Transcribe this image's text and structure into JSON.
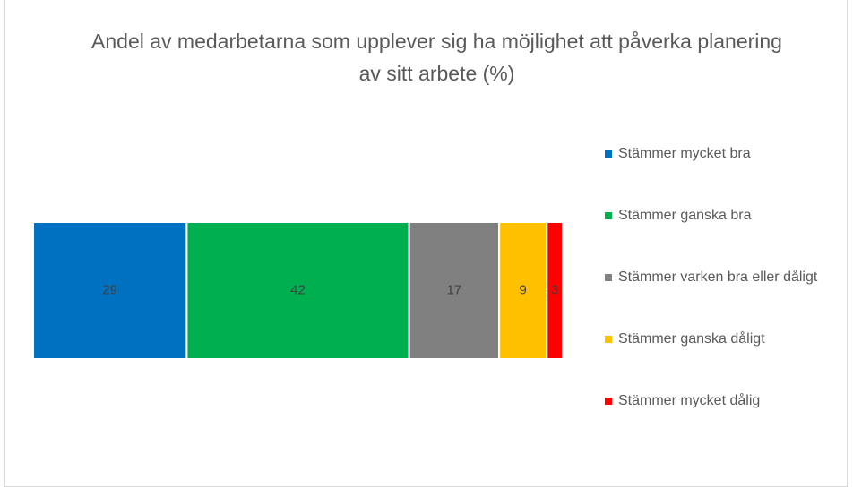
{
  "chart_data": {
    "type": "bar",
    "orientation": "horizontal",
    "stacked": true,
    "title": "Andel av medarbetarna som upplever sig ha möjlighet att påverka planering av sitt arbete (%)",
    "xlim": [
      0,
      100
    ],
    "series": [
      {
        "name": "Stämmer mycket bra",
        "color": "#0070c0",
        "values": [
          29
        ]
      },
      {
        "name": "Stämmer ganska bra",
        "color": "#00b050",
        "values": [
          42
        ]
      },
      {
        "name": "Stämmer varken bra eller dåligt",
        "color": "#808080",
        "values": [
          17
        ]
      },
      {
        "name": "Stämmer ganska dåligt",
        "color": "#ffc000",
        "values": [
          9
        ]
      },
      {
        "name": "Stämmer mycket dålig",
        "color": "#ff0000",
        "values": [
          3
        ]
      }
    ]
  }
}
